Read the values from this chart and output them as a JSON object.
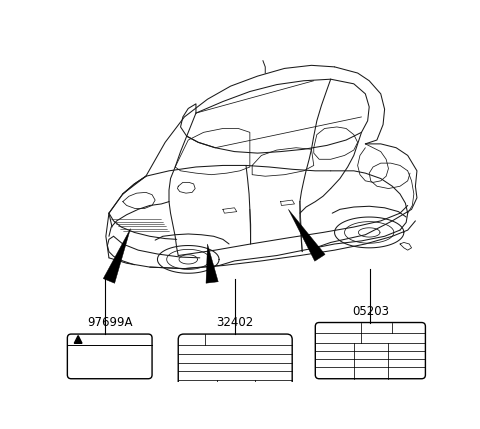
{
  "bg_color": "#ffffff",
  "line_color": "#1a1a1a",
  "label1": "97699A",
  "label2": "32402",
  "label3": "05203",
  "car_lw": 0.75,
  "arrow_color": "#000000",
  "figsize": [
    4.8,
    4.29
  ],
  "dpi": 100
}
